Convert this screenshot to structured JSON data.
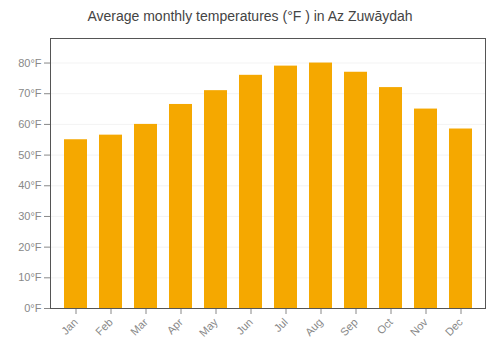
{
  "chart_data": {
    "type": "bar",
    "title": "Average monthly temperatures (°F ) in Az Zuwāydah",
    "categories": [
      "Jan",
      "Feb",
      "Mar",
      "Apr",
      "May",
      "Jun",
      "Jul",
      "Aug",
      "Sep",
      "Oct",
      "Nov",
      "Dec"
    ],
    "values": [
      55,
      56.5,
      60,
      66.5,
      71,
      76,
      79,
      80,
      77,
      72,
      65,
      58.5
    ],
    "color": "#F5A800",
    "ylim": [
      0,
      88
    ],
    "yticks": [
      {
        "value": 0,
        "label": "0°F"
      },
      {
        "value": 10,
        "label": "10°F"
      },
      {
        "value": 20,
        "label": "20°F"
      },
      {
        "value": 30,
        "label": "30°F"
      },
      {
        "value": 40,
        "label": "40°F"
      },
      {
        "value": 50,
        "label": "50°F"
      },
      {
        "value": 60,
        "label": "60°F"
      },
      {
        "value": 70,
        "label": "70°F"
      },
      {
        "value": 80,
        "label": "80°F"
      }
    ],
    "grid": true
  }
}
